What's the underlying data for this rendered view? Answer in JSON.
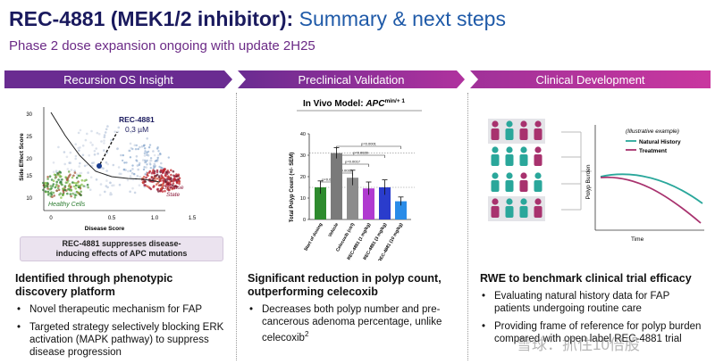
{
  "header": {
    "title_main": "REC-4881 (MEK1/2 inhibitor):",
    "title_rest": "Summary & next steps",
    "subtitle": "Phase 2 dose expansion ongoing with update 2H25"
  },
  "sections": [
    {
      "header": "Recursion OS Insight",
      "plot": {
        "ylabel": "Side Effect Score",
        "xlabel": "Disease Score",
        "yticks": [
          "30",
          "25",
          "20",
          "15",
          "10"
        ],
        "xticks": [
          "0",
          "0.5",
          "1.0",
          "1.5"
        ],
        "compound_label": "REC-4881",
        "compound_dose": "0.3 µM",
        "healthy_label": "Healthy Cells",
        "disease_label": "Disease",
        "disease_label2": "State"
      },
      "callout_line1": "REC-4881 suppresses disease-",
      "callout_line2": "inducing effects of APC mutations",
      "heading_line1": "Identified through phenotypic",
      "heading_line2": "discovery platform",
      "bullets": [
        "Novel therapeutic mechanism for FAP",
        "Targeted strategy selectively blocking ERK activation (MAPK pathway) to suppress disease progression"
      ]
    },
    {
      "header": "Preclinical Validation",
      "chart_title_prefix": "In Vivo Model: ",
      "chart_title_gene": "APC",
      "chart_title_sup": "min/+ 1",
      "chart_data": {
        "type": "bar",
        "ylabel": "Total Polyp Count (+/- SEM)",
        "yticks": [
          "0",
          "10",
          "20",
          "30",
          "40"
        ],
        "ylim": [
          0,
          40
        ],
        "categories": [
          "Start of dosing",
          "Vehicle",
          "Celecoxib (ctrl)",
          "REC-4881 (1 mg/kg)",
          "REC-4881 (3 mg/kg)",
          "REC-4881 (10 mg/kg)"
        ],
        "values": [
          15,
          31,
          19.5,
          14.5,
          15,
          8.5
        ],
        "errors": [
          3,
          2.5,
          3.5,
          3,
          3.5,
          2
        ],
        "colors": [
          "#2e8b2e",
          "#7a7a7a",
          "#8c8c8c",
          "#b03ad0",
          "#2a3ccc",
          "#2a8ce8"
        ],
        "pvalues": [
          "p=0.006",
          "p=0.0016",
          "p=0.0017",
          "p=0.0029",
          "p=0.0001"
        ]
      },
      "heading_line1": "Significant reduction in polyp count,",
      "heading_line2": "outperforming celecoxib",
      "bullet_main": "Decreases both polyp number and pre-cancerous adenoma percentage, unlike celecoxib",
      "bullet_sup": "2"
    },
    {
      "header": "Clinical Development",
      "illus_label": "(Illustrative example)",
      "legend": [
        {
          "name": "Natural History",
          "color": "#2aa79b"
        },
        {
          "name": "Treatment",
          "color": "#a8326e"
        }
      ],
      "ylabel": "Polyp Burden",
      "xlabel": "Time",
      "heading": "RWE to benchmark clinical trial efficacy",
      "bullets": [
        "Evaluating natural history data for FAP patients undergoing routine care",
        "Providing frame of reference for polyp burden compared with open label REC-4881 trial"
      ]
    }
  ],
  "watermark": "雪球：抓住10倍股"
}
